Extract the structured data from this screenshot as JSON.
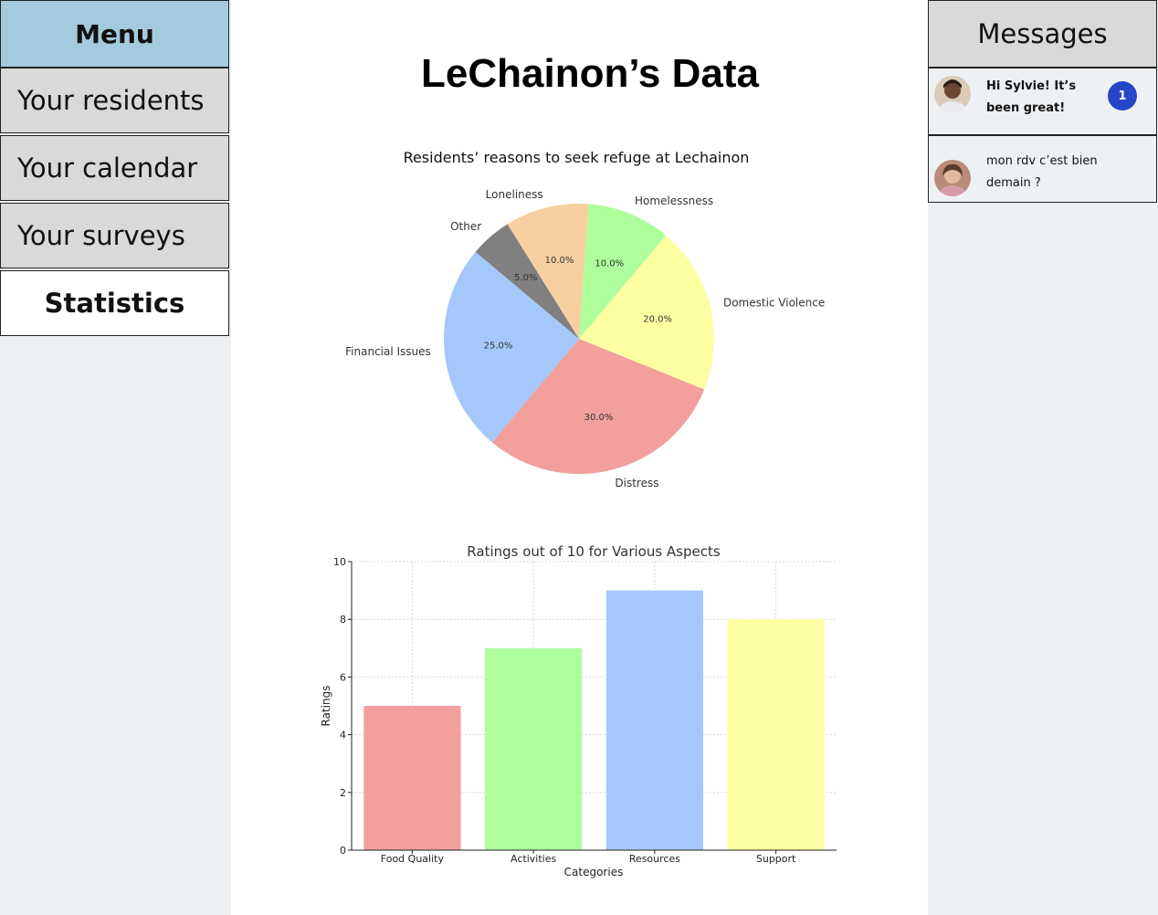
{
  "menu": {
    "header": "Menu",
    "items": [
      {
        "label": "Your residents"
      },
      {
        "label": "Your calendar"
      },
      {
        "label": "Your surveys"
      },
      {
        "label": "Statistics",
        "active": true
      }
    ]
  },
  "page": {
    "title": "LeChainon’s Data"
  },
  "messages": {
    "header": "Messages",
    "items": [
      {
        "text": "Hi Sylvie! It’s been great!",
        "unread": "1",
        "bold": true
      },
      {
        "text": "mon rdv c’est bien demain ?",
        "bold": false
      }
    ]
  },
  "chart_data": [
    {
      "type": "pie",
      "title": "Residents’ reasons to seek refuge at Lechainon",
      "slices": [
        {
          "label": "Financial Issues",
          "value": 25.0,
          "pct_label": "25.0%",
          "color": "#a4c8fa"
        },
        {
          "label": "Distress",
          "value": 30.0,
          "pct_label": "30.0%",
          "color": "#f29f9d"
        },
        {
          "label": "Domestic Violence",
          "value": 20.0,
          "pct_label": "20.0%",
          "color": "#fefea2"
        },
        {
          "label": "Homelessness",
          "value": 10.0,
          "pct_label": "10.0%",
          "color": "#aefe9c"
        },
        {
          "label": "Loneliness",
          "value": 10.0,
          "pct_label": "10.0%",
          "color": "#f8cfa1"
        },
        {
          "label": "Other",
          "value": 5.0,
          "pct_label": "5.0%",
          "color": "#808080"
        }
      ]
    },
    {
      "type": "bar",
      "title": "Ratings out of 10 for Various Aspects",
      "xlabel": "Categories",
      "ylabel": "Ratings",
      "categories": [
        "Food Quality",
        "Activities",
        "Resources",
        "Support"
      ],
      "values": [
        5,
        7,
        9,
        8
      ],
      "colors": [
        "#f29f9d",
        "#aefe9c",
        "#a4c8fa",
        "#fefea2"
      ],
      "ylim": [
        0,
        10
      ],
      "yticks": [
        "0",
        "2",
        "4",
        "6",
        "8",
        "10"
      ],
      "grid": true
    }
  ]
}
